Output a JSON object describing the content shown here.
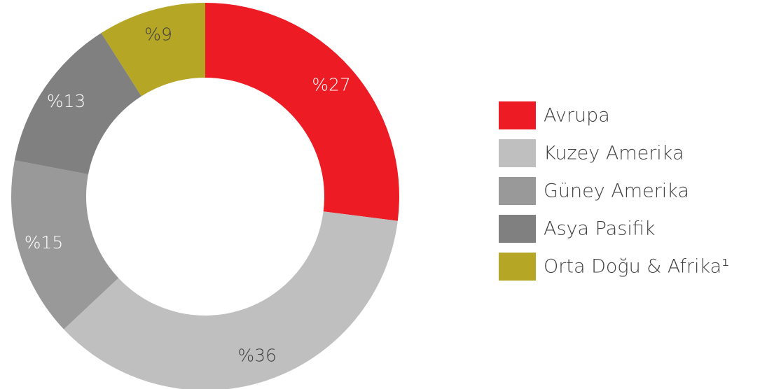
{
  "chart_data": {
    "type": "donut",
    "categories": [
      "Avrupa",
      "Kuzey Amerika",
      "Güney Amerika",
      "Asya Pasifik",
      "Orta Doğu & Afrika¹"
    ],
    "values": [
      27,
      36,
      15,
      13,
      9
    ],
    "value_labels": [
      "%27",
      "%36",
      "%15",
      "%13",
      "%9"
    ],
    "colors": [
      "#ed1c24",
      "#bfbfbf",
      "#999999",
      "#808080",
      "#b5a626"
    ],
    "label_colors": [
      "#ffffff",
      "#404040",
      "#ffffff",
      "#ffffff",
      "#404040"
    ],
    "legend": "right"
  }
}
